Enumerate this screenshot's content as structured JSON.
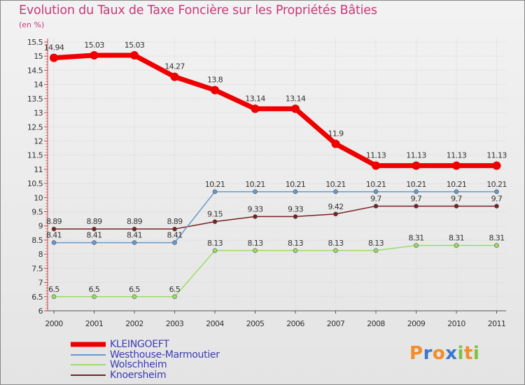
{
  "header": {
    "title": "Evolution du Taux de Taxe Foncière sur les Propriétés Bâties",
    "unit": "(en %)"
  },
  "brand": {
    "letters": [
      "P",
      "r",
      "o",
      "x",
      "i",
      "t",
      "i"
    ],
    "colors": [
      "#f28c28",
      "#3a78c9",
      "#f28c28",
      "#3a78c9",
      "#7cc242",
      "#f28c28",
      "#7cc242"
    ]
  },
  "chart_data": {
    "type": "line",
    "title": "Evolution du Taux de Taxe Foncière sur les Propriétés Bâties",
    "ylabel": "(en %)",
    "xlabel": "",
    "categories": [
      "2000",
      "2001",
      "2002",
      "2003",
      "2004",
      "2005",
      "2006",
      "2007",
      "2008",
      "2009",
      "2010",
      "2011"
    ],
    "ylim": [
      6,
      15.5
    ],
    "yticks": [
      6,
      6.5,
      7,
      7.5,
      8,
      8.5,
      9,
      9.5,
      10,
      10.5,
      11,
      11.5,
      12,
      12.5,
      13,
      13.5,
      14,
      14.5,
      15,
      15.5
    ],
    "ytick_labels": [
      "6",
      "6.5",
      "7",
      "7.5",
      "8",
      "8.5",
      "9",
      "9.5",
      "10",
      "10.5",
      "11",
      "11.5",
      "12",
      "12.5",
      "13",
      "13.5",
      "14",
      "14.5",
      "15",
      "15.5"
    ],
    "legend_position": "bottom-left",
    "series": [
      {
        "name": "KLEINGOEFT",
        "color": "#ee0000",
        "values": [
          14.94,
          15.03,
          15.03,
          14.27,
          13.8,
          13.14,
          13.14,
          11.9,
          11.13,
          11.13,
          11.13,
          11.13
        ],
        "labels": [
          "14.94",
          "15.03",
          "15.03",
          "14.27",
          "13.8",
          "13.14",
          "13.14",
          "11.9",
          "11.13",
          "11.13",
          "11.13",
          "11.13"
        ]
      },
      {
        "name": "Westhouse-Marmoutier",
        "color": "#6699cc",
        "values": [
          8.41,
          8.41,
          8.41,
          8.41,
          10.21,
          10.21,
          10.21,
          10.21,
          10.21,
          10.21,
          10.21,
          10.21
        ],
        "labels": [
          "8.41",
          "8.41",
          "8.41",
          "8.41",
          "10.21",
          "10.21",
          "10.21",
          "10.21",
          "10.21",
          "10.21",
          "10.21",
          "10.21"
        ]
      },
      {
        "name": "Wolschheim",
        "color": "#99dd66",
        "values": [
          6.5,
          6.5,
          6.5,
          6.5,
          8.13,
          8.13,
          8.13,
          8.13,
          8.13,
          8.31,
          8.31,
          8.31
        ],
        "labels": [
          "6.5",
          "6.5",
          "6.5",
          "6.5",
          "8.13",
          "8.13",
          "8.13",
          "8.13",
          "8.13",
          "8.31",
          "8.31",
          "8.31"
        ]
      },
      {
        "name": "Knoersheim",
        "color": "#772222",
        "values": [
          8.89,
          8.89,
          8.89,
          8.89,
          9.15,
          9.33,
          9.33,
          9.42,
          9.7,
          9.7,
          9.7,
          9.7
        ],
        "labels": [
          "8.89",
          "8.89",
          "8.89",
          "8.89",
          "9.15",
          "9.33",
          "9.33",
          "9.42",
          "9.7",
          "9.7",
          "9.7",
          "9.7"
        ]
      }
    ]
  }
}
